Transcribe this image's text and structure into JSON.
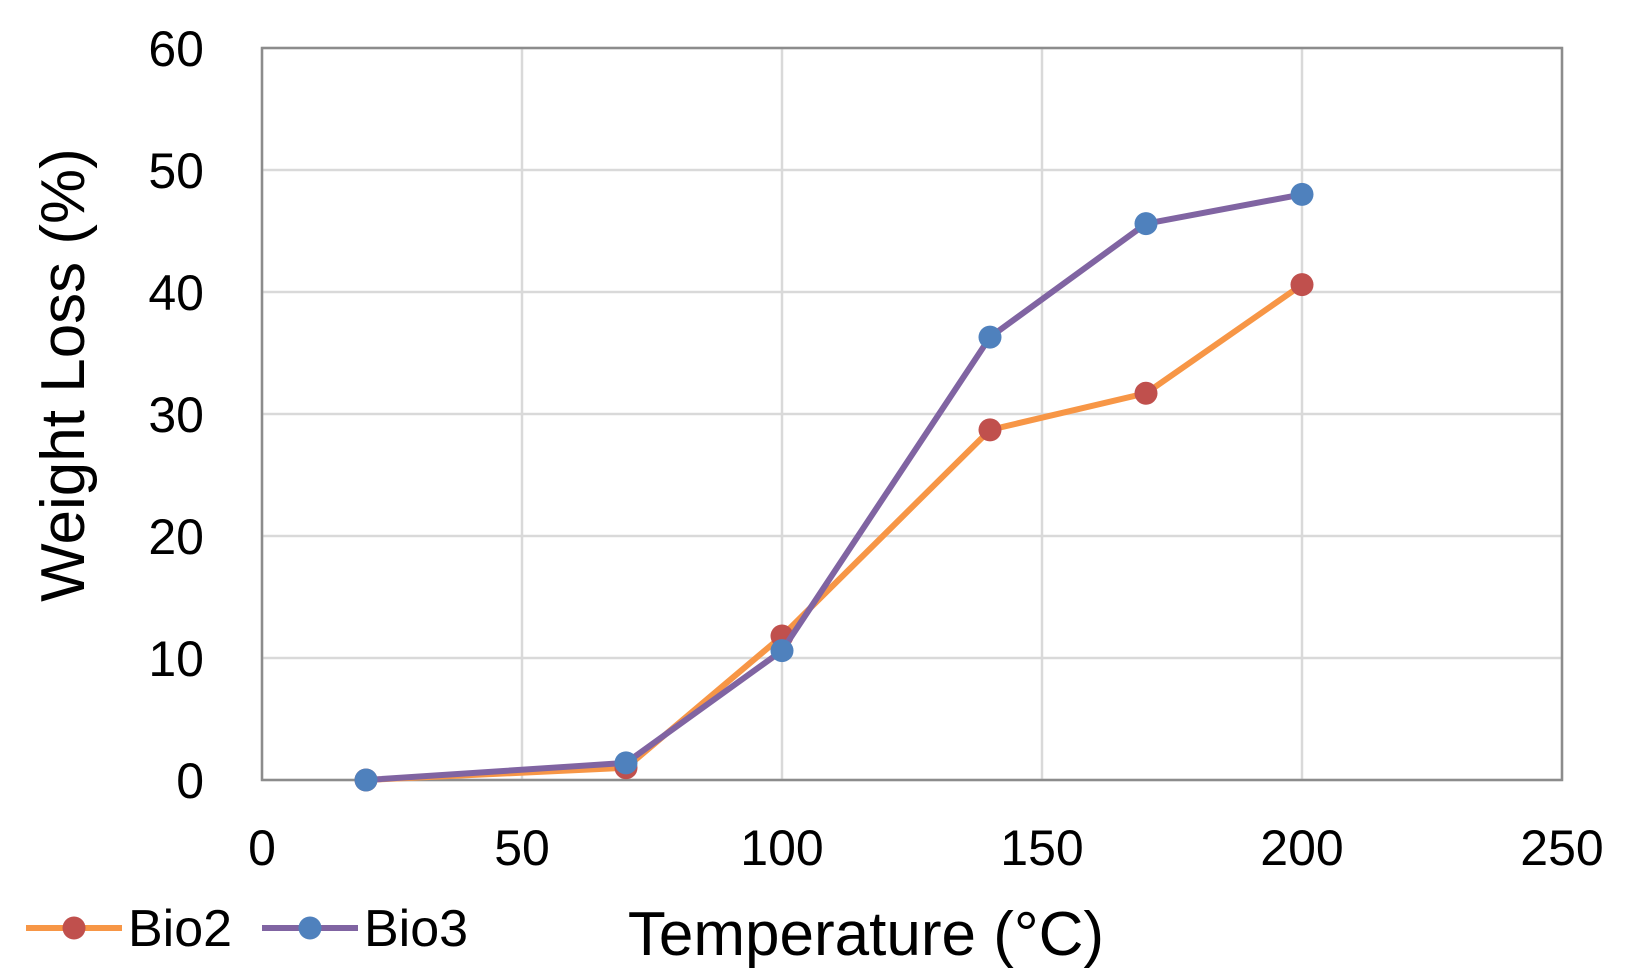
{
  "chart_data": {
    "type": "line",
    "title": "",
    "xlabel": "Temperature (°C)",
    "ylabel": "Weight Loss (%)",
    "xlim": [
      0,
      250
    ],
    "ylim": [
      0,
      60
    ],
    "x_ticks": [
      0,
      50,
      100,
      150,
      200,
      250
    ],
    "y_ticks": [
      0,
      10,
      20,
      30,
      40,
      50,
      60
    ],
    "grid": true,
    "legend_position": "bottom-left",
    "series": [
      {
        "name": "Bio2",
        "line_color": "#F79646",
        "marker_color": "#C0504D",
        "points": [
          {
            "x": 20,
            "y": 0
          },
          {
            "x": 70,
            "y": 1
          },
          {
            "x": 100,
            "y": 11.8
          },
          {
            "x": 140,
            "y": 28.7
          },
          {
            "x": 170,
            "y": 31.7
          },
          {
            "x": 200,
            "y": 40.6
          }
        ]
      },
      {
        "name": "Bio3",
        "line_color": "#8064A2",
        "marker_color": "#4F81BD",
        "points": [
          {
            "x": 20,
            "y": 0
          },
          {
            "x": 70,
            "y": 1.4
          },
          {
            "x": 100,
            "y": 10.6
          },
          {
            "x": 140,
            "y": 36.3
          },
          {
            "x": 170,
            "y": 45.6
          },
          {
            "x": 200,
            "y": 48
          }
        ]
      }
    ]
  }
}
